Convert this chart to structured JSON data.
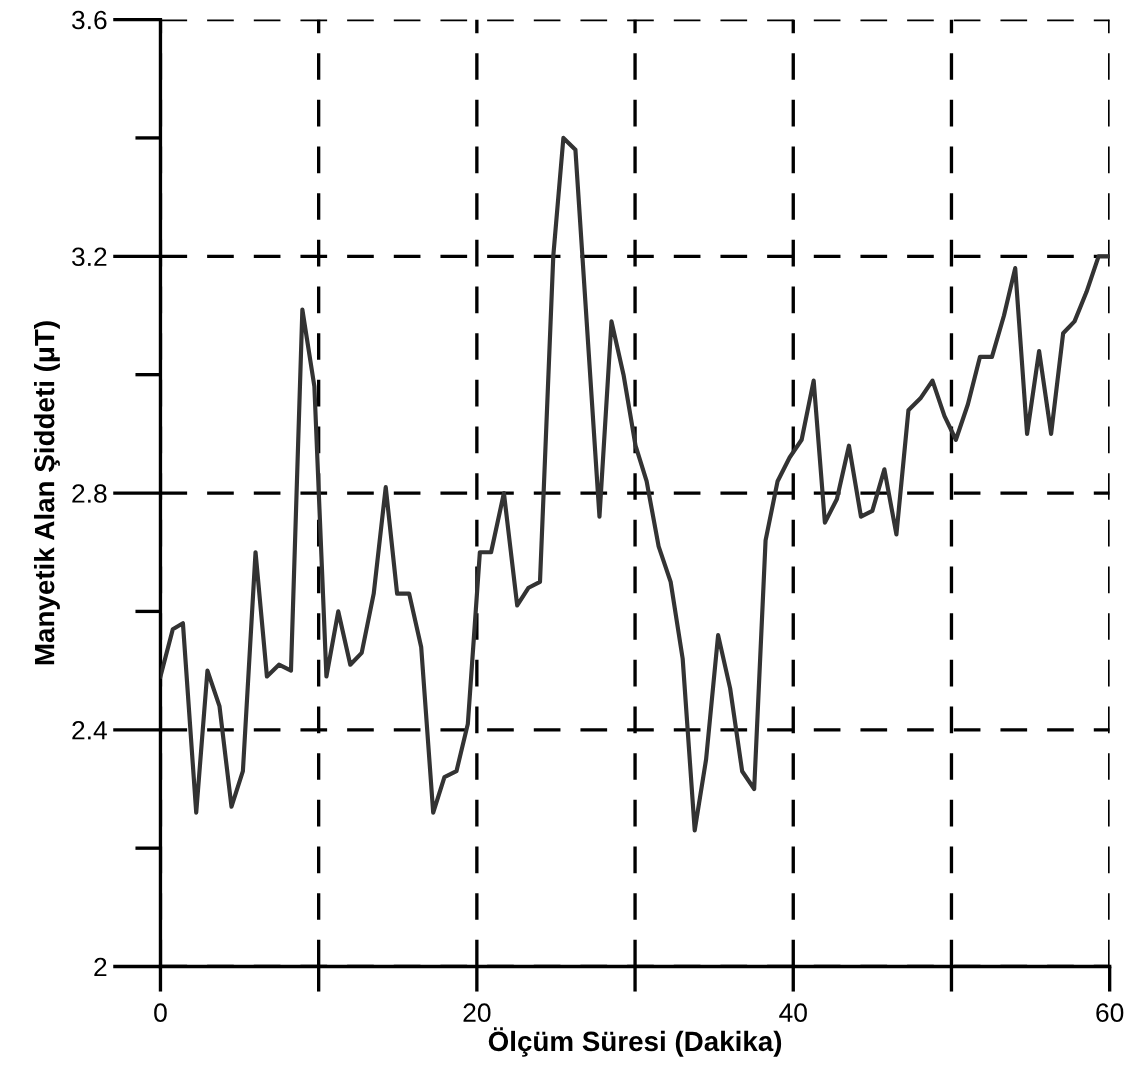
{
  "chart_data": {
    "type": "line",
    "xlabel": "Ölçüm Süresi (Dakika)",
    "ylabel": "Manyetik Alan Şiddeti (μT)",
    "xlim": [
      0,
      60
    ],
    "ylim": [
      2,
      3.6
    ],
    "xticks": [
      0,
      {
        "value": 10,
        "label": null
      },
      20,
      {
        "value": 30,
        "label": null
      },
      40,
      {
        "value": 50,
        "label": null
      },
      60
    ],
    "yticks": [
      2,
      {
        "value": 2.2,
        "label": null
      },
      2.4,
      {
        "value": 2.6,
        "label": null
      },
      2.8,
      {
        "value": 3.0,
        "label": null
      },
      3.2,
      {
        "value": 3.4,
        "label": null
      },
      3.6
    ],
    "grid": true,
    "line_style": "solid",
    "marker": "none",
    "series": [
      {
        "color": "#333333",
        "x": [
          0,
          0.78,
          1.42,
          2.26,
          2.97,
          3.73,
          4.49,
          5.21,
          6.01,
          6.73,
          7.49,
          8.25,
          8.97,
          9.73,
          10.49,
          11.24,
          12.0,
          12.72,
          13.48,
          14.24,
          14.96,
          15.72,
          16.48,
          17.24,
          17.95,
          18.71,
          19.43,
          20.19,
          20.9,
          21.71,
          22.55,
          23.27,
          23.99,
          24.83,
          25.47,
          26.23,
          27.75,
          28.51,
          29.27,
          30.03,
          30.73,
          31.49,
          32.25,
          33.01,
          33.77,
          34.49,
          35.25,
          36.01,
          36.77,
          37.53,
          38.25,
          39.01,
          39.77,
          40.53,
          41.29,
          42.0,
          42.76,
          43.52,
          44.28,
          45.0,
          45.76,
          46.52,
          47.28,
          48.04,
          48.8,
          49.56,
          50.28,
          51.04,
          51.8,
          52.56,
          53.32,
          54.03,
          54.78,
          55.54,
          56.3,
          57.06,
          57.78,
          58.54,
          59.3,
          59.94
        ],
        "values": [
          2.49,
          2.57,
          2.58,
          2.26,
          2.5,
          2.44,
          2.27,
          2.33,
          2.7,
          2.49,
          2.51,
          2.5,
          3.11,
          2.98,
          2.49,
          2.6,
          2.51,
          2.53,
          2.63,
          2.81,
          2.63,
          2.63,
          2.54,
          2.26,
          2.32,
          2.33,
          2.41,
          2.7,
          2.7,
          2.8,
          2.61,
          2.64,
          2.65,
          3.2,
          3.4,
          3.38,
          2.76,
          3.09,
          3.0,
          2.88,
          2.82,
          2.71,
          2.65,
          2.52,
          2.23,
          2.35,
          2.56,
          2.47,
          2.33,
          2.3,
          2.72,
          2.82,
          2.86,
          2.89,
          2.99,
          2.75,
          2.79,
          2.88,
          2.76,
          2.77,
          2.84,
          2.73,
          2.94,
          2.96,
          2.99,
          2.93,
          2.89,
          2.95,
          3.03,
          3.03,
          3.1,
          3.18,
          2.9,
          3.04,
          2.9,
          3.07,
          3.09,
          3.14,
          3.2,
          3.2
        ]
      }
    ]
  }
}
